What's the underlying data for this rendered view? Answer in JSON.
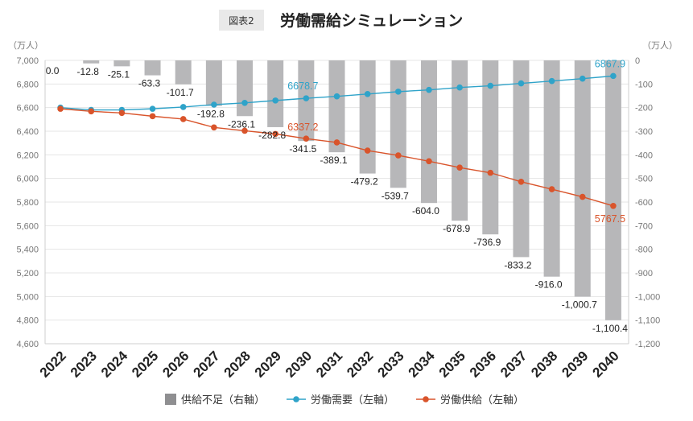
{
  "header": {
    "badge": "図表2",
    "title": "労働需給シミュレーション"
  },
  "units": {
    "left": "（万人）",
    "right": "（万人）"
  },
  "colors": {
    "bar": "#b7b7b9",
    "demand": "#2fa3c9",
    "supply": "#d9542b"
  },
  "chart_data": {
    "type": "bar+line",
    "categories": [
      "2022",
      "2023",
      "2024",
      "2025",
      "2026",
      "2027",
      "2028",
      "2029",
      "2030",
      "2031",
      "2032",
      "2033",
      "2034",
      "2035",
      "2036",
      "2037",
      "2038",
      "2039",
      "2040"
    ],
    "left_axis": {
      "ylim": [
        4600,
        7000
      ],
      "step": 200
    },
    "right_axis": {
      "ylim": [
        -1200,
        0
      ],
      "step": 100
    },
    "series": [
      {
        "name": "供給不足（右軸）",
        "type": "bar",
        "axis": "right",
        "values": [
          0.0,
          -12.8,
          -25.1,
          -63.3,
          -101.7,
          -192.8,
          -236.1,
          -282.8,
          -341.5,
          -389.1,
          -479.2,
          -539.7,
          -604.0,
          -678.9,
          -736.9,
          -833.2,
          -916.0,
          -1000.7,
          -1100.4
        ],
        "labels": [
          "0.0",
          "-12.8",
          "-25.1",
          "-63.3",
          "-101.7",
          "-192.8",
          "-236.1",
          "-282.8",
          "-341.5",
          "-389.1",
          "-479.2",
          "-539.7",
          "-604.0",
          "-678.9",
          "-736.9",
          "-833.2",
          "-916.0",
          "-1,000.7",
          "-1,100.4"
        ]
      },
      {
        "name": "労働需要（左軸）",
        "type": "line",
        "axis": "left",
        "values": [
          6600,
          6580,
          6580,
          6590,
          6605,
          6625,
          6640,
          6660,
          6678.7,
          6695,
          6715,
          6735,
          6750,
          6770,
          6785,
          6805,
          6825,
          6845,
          6867.9
        ],
        "labels": [
          {
            "index": 8,
            "text": "6678.7"
          },
          {
            "index": 18,
            "text": "6867.9"
          }
        ]
      },
      {
        "name": "労働供給（左軸）",
        "type": "line",
        "axis": "left",
        "values": [
          6590,
          6568,
          6555,
          6527,
          6503,
          6432,
          6404,
          6377,
          6337.2,
          6305,
          6236,
          6195,
          6146,
          6092,
          6048,
          5972,
          5909,
          5844,
          5767.5
        ],
        "labels": [
          {
            "index": 8,
            "text": "6337.2"
          },
          {
            "index": 18,
            "text": "5767.5"
          }
        ]
      }
    ],
    "legend": {
      "placement": "bottom"
    }
  }
}
